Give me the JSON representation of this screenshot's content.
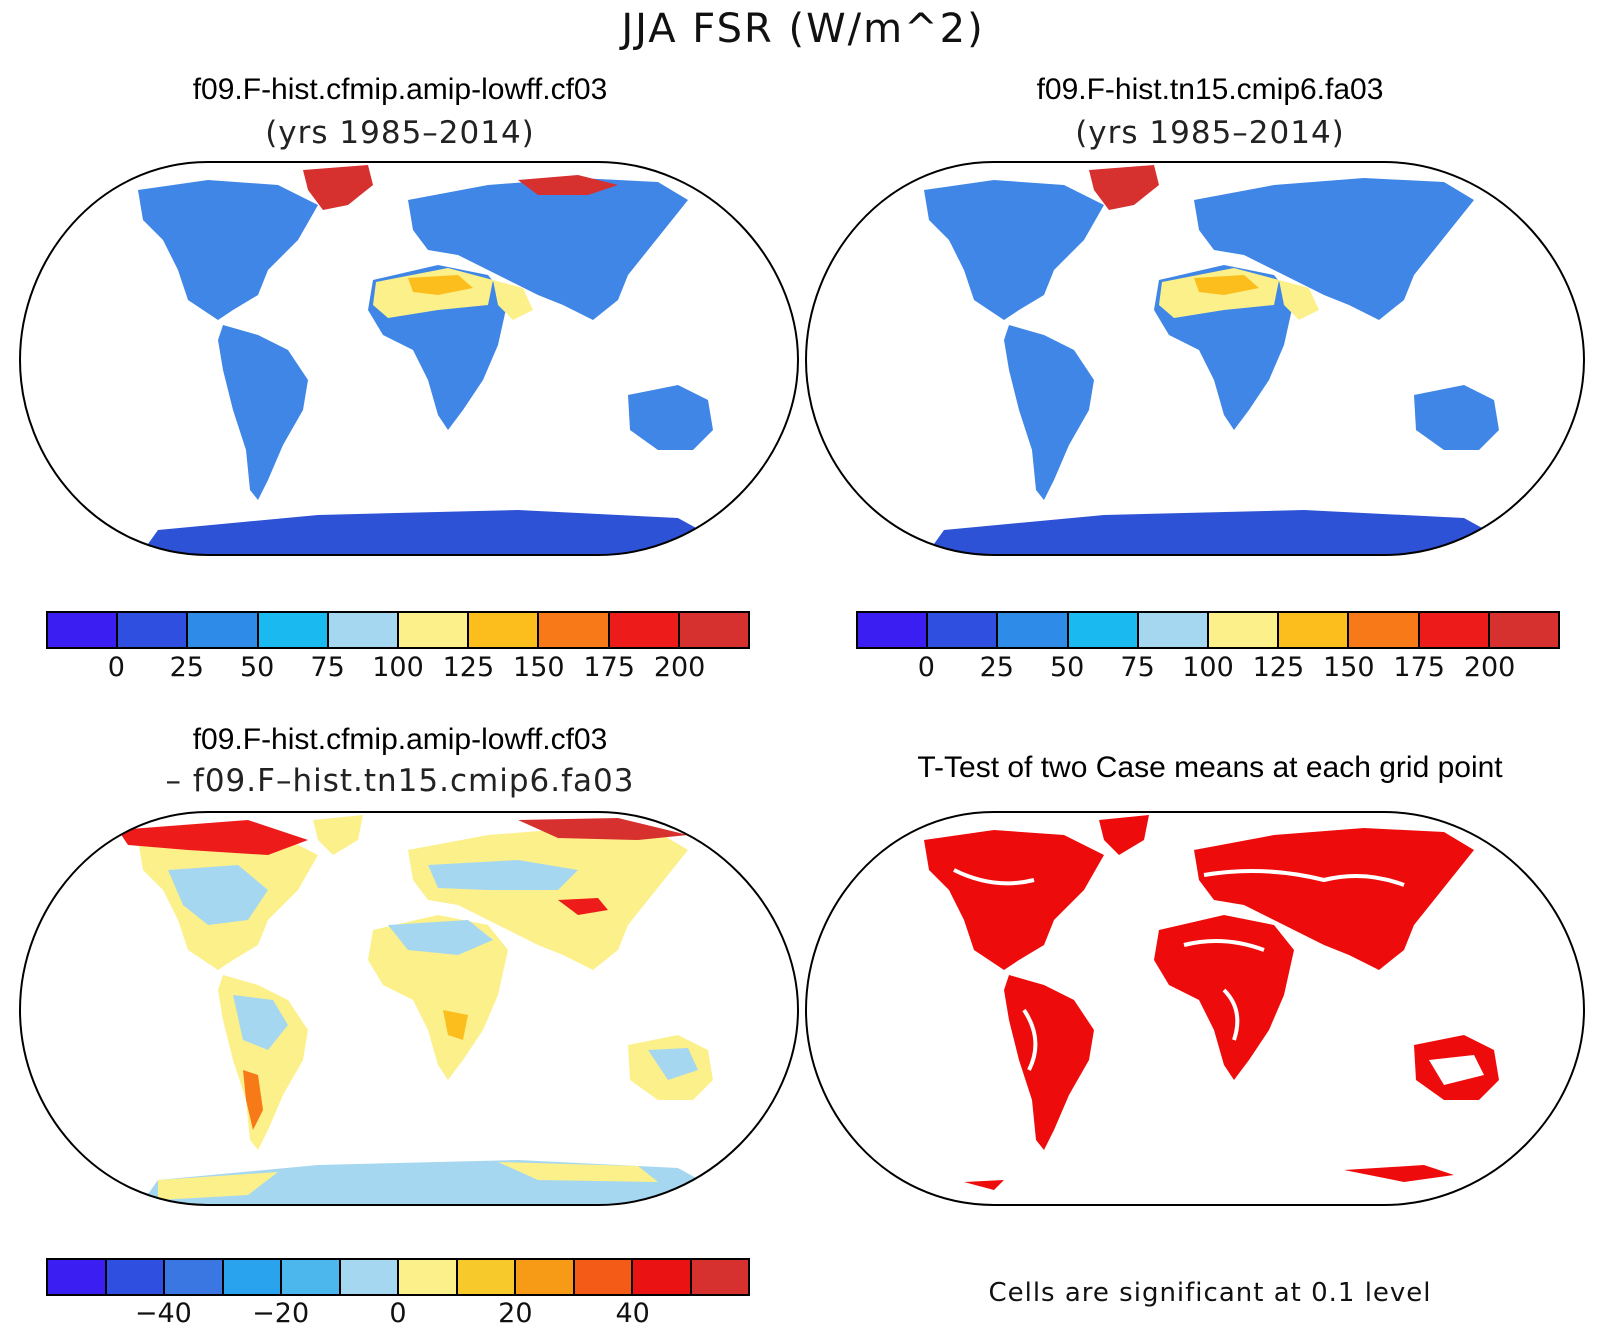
{
  "main_title": "JJA FSR (W/m^2)",
  "panels": [
    {
      "title": "f09.F-hist.cfmip.amip-lowff.cf03",
      "subtitle": "(yrs 1985–2014)",
      "kind": "absolute"
    },
    {
      "title": "f09.F-hist.tn15.cmip6.fa03",
      "subtitle": "(yrs 1985–2014)",
      "kind": "absolute"
    },
    {
      "title": "f09.F-hist.cfmip.amip-lowff.cf03",
      "subtitle": "– f09.F–hist.tn15.cmip6.fa03",
      "kind": "difference"
    },
    {
      "title": "T-Test of two Case means at each grid point",
      "subtitle": "",
      "kind": "ttest"
    }
  ],
  "colorbar_abs": {
    "colors": [
      "#3a1ef2",
      "#2f4fe0",
      "#2e8ce8",
      "#1ab9ef",
      "#a6d7f0",
      "#fcf08a",
      "#fbbe1c",
      "#f77917",
      "#ee1b1b",
      "#d6302f"
    ],
    "labels": [
      "0",
      "25",
      "50",
      "75",
      "100",
      "125",
      "150",
      "175",
      "200"
    ]
  },
  "colorbar_diff": {
    "colors": [
      "#3a1ef2",
      "#2f4fe0",
      "#3b77e3",
      "#2aa3ee",
      "#4bb7ec",
      "#a6d7f0",
      "#fcf08a",
      "#f7c92b",
      "#f79a15",
      "#f45b17",
      "#ea1212",
      "#d6302f"
    ],
    "labels": [
      "−40",
      "−20",
      "0",
      "20",
      "40"
    ]
  },
  "significance_note": "Cells are significant at 0.1 level",
  "colors": {
    "land_abs_main": "#3f86e6",
    "land_abs_dark": "#2e52d6",
    "desert_yellow": "#fcf08a",
    "desert_orange": "#fbbe1c",
    "polar_red": "#d6302f",
    "diff_yellow": "#fcf08a",
    "diff_blue": "#a6d7f0",
    "ttest_red": "#ee0b0b"
  }
}
